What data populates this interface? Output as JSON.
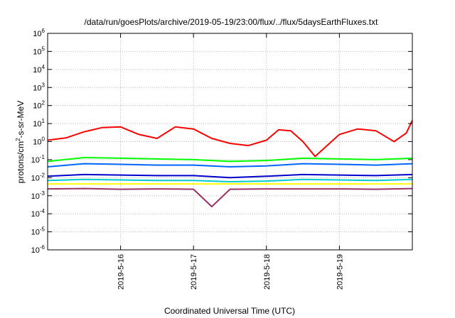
{
  "chart_data": {
    "type": "line",
    "title": "/data/run/goesPlots/archive/2019-05-19/23:00/flux/../flux/5daysEarthFluxes.txt",
    "xlabel": "Coordinated Universal Time (UTC)",
    "ylabel": {
      "base": "protons/cm",
      "sup": "2",
      "tail": "-s-sr-MeV"
    },
    "y_scale": "log",
    "ylim": [
      1e-06,
      1000000.0
    ],
    "y_ticks": [
      {
        "value": 1e-06,
        "base": "10",
        "exp": "-6"
      },
      {
        "value": 1e-05,
        "base": "10",
        "exp": "-5"
      },
      {
        "value": 0.0001,
        "base": "10",
        "exp": "-4"
      },
      {
        "value": 0.001,
        "base": "10",
        "exp": "-3"
      },
      {
        "value": 0.01,
        "base": "10",
        "exp": "-2"
      },
      {
        "value": 0.1,
        "base": "10",
        "exp": "-1"
      },
      {
        "value": 1.0,
        "base": "10",
        "exp": "0"
      },
      {
        "value": 10.0,
        "base": "10",
        "exp": "1"
      },
      {
        "value": 100.0,
        "base": "10",
        "exp": "2"
      },
      {
        "value": 1000.0,
        "base": "10",
        "exp": "3"
      },
      {
        "value": 10000.0,
        "base": "10",
        "exp": "4"
      },
      {
        "value": 100000.0,
        "base": "10",
        "exp": "5"
      },
      {
        "value": 1000000.0,
        "base": "10",
        "exp": "6"
      }
    ],
    "xlim": [
      "2019-05-15T00:00",
      "2019-05-20T00:00"
    ],
    "x_ticks": [
      {
        "value": "2019-05-16T00:00",
        "label": "2019-5-16"
      },
      {
        "value": "2019-05-17T00:00",
        "label": "2019-5-17"
      },
      {
        "value": "2019-05-18T00:00",
        "label": "2019-5-18"
      },
      {
        "value": "2019-05-19T00:00",
        "label": "2019-5-19"
      }
    ],
    "grid": true,
    "legend": "none",
    "series": [
      {
        "color": "#ff0000",
        "x": [
          "2019-05-15T00:00",
          "2019-05-15T06:00",
          "2019-05-15T12:00",
          "2019-05-15T18:00",
          "2019-05-16T00:00",
          "2019-05-16T06:00",
          "2019-05-16T12:00",
          "2019-05-16T18:00",
          "2019-05-17T00:00",
          "2019-05-17T06:00",
          "2019-05-17T12:00",
          "2019-05-17T18:00",
          "2019-05-18T00:00",
          "2019-05-18T04:00",
          "2019-05-18T08:00",
          "2019-05-18T12:00",
          "2019-05-18T16:00",
          "2019-05-19T00:00",
          "2019-05-19T06:00",
          "2019-05-19T12:00",
          "2019-05-19T18:00",
          "2019-05-19T22:00",
          "2019-05-20T00:00"
        ],
        "values": [
          1.2,
          1.6,
          3.5,
          6.0,
          6.5,
          2.5,
          1.5,
          6.5,
          5.0,
          1.5,
          0.8,
          0.6,
          1.2,
          4.5,
          4.0,
          1.0,
          0.15,
          2.5,
          5.0,
          4.0,
          1.0,
          3.0,
          15.0
        ]
      },
      {
        "color": "#00ff00",
        "x": [
          "2019-05-15T00:00",
          "2019-05-15T12:00",
          "2019-05-16T00:00",
          "2019-05-16T12:00",
          "2019-05-17T00:00",
          "2019-05-17T12:00",
          "2019-05-18T00:00",
          "2019-05-18T12:00",
          "2019-05-19T00:00",
          "2019-05-19T12:00",
          "2019-05-20T00:00"
        ],
        "values": [
          0.08,
          0.13,
          0.12,
          0.11,
          0.1,
          0.08,
          0.09,
          0.12,
          0.11,
          0.1,
          0.12
        ]
      },
      {
        "color": "#0066ff",
        "x": [
          "2019-05-15T00:00",
          "2019-05-15T12:00",
          "2019-05-16T00:00",
          "2019-05-16T12:00",
          "2019-05-17T00:00",
          "2019-05-17T12:00",
          "2019-05-18T00:00",
          "2019-05-18T12:00",
          "2019-05-19T00:00",
          "2019-05-19T12:00",
          "2019-05-20T00:00"
        ],
        "values": [
          0.04,
          0.06,
          0.055,
          0.05,
          0.05,
          0.04,
          0.045,
          0.06,
          0.055,
          0.05,
          0.06
        ]
      },
      {
        "color": "#0000cc",
        "x": [
          "2019-05-15T00:00",
          "2019-05-15T12:00",
          "2019-05-16T00:00",
          "2019-05-16T12:00",
          "2019-05-17T00:00",
          "2019-05-17T12:00",
          "2019-05-18T00:00",
          "2019-05-18T12:00",
          "2019-05-19T00:00",
          "2019-05-19T12:00",
          "2019-05-20T00:00"
        ],
        "values": [
          0.012,
          0.015,
          0.014,
          0.013,
          0.013,
          0.01,
          0.012,
          0.015,
          0.014,
          0.013,
          0.015
        ]
      },
      {
        "color": "#00cccc",
        "x": [
          "2019-05-15T00:00",
          "2019-05-15T12:00",
          "2019-05-16T00:00",
          "2019-05-16T12:00",
          "2019-05-17T00:00",
          "2019-05-17T12:00",
          "2019-05-18T00:00",
          "2019-05-18T12:00",
          "2019-05-19T00:00",
          "2019-05-19T12:00",
          "2019-05-20T00:00"
        ],
        "values": [
          0.007,
          0.008,
          0.0075,
          0.007,
          0.007,
          0.006,
          0.0065,
          0.008,
          0.0075,
          0.007,
          0.008
        ]
      },
      {
        "color": "#ffff00",
        "x": [
          "2019-05-15T00:00",
          "2019-05-16T00:00",
          "2019-05-17T00:00",
          "2019-05-18T00:00",
          "2019-05-19T00:00",
          "2019-05-20T00:00"
        ],
        "values": [
          0.0045,
          0.0045,
          0.0045,
          0.0045,
          0.0045,
          0.0045
        ]
      },
      {
        "color": "#993366",
        "x": [
          "2019-05-15T00:00",
          "2019-05-15T12:00",
          "2019-05-16T00:00",
          "2019-05-16T12:00",
          "2019-05-17T00:00",
          "2019-05-17T06:00",
          "2019-05-17T12:00",
          "2019-05-18T00:00",
          "2019-05-18T12:00",
          "2019-05-19T00:00",
          "2019-05-19T12:00",
          "2019-05-20T00:00"
        ],
        "values": [
          0.0024,
          0.0025,
          0.0023,
          0.0024,
          0.0023,
          0.00025,
          0.0023,
          0.0024,
          0.0024,
          0.0024,
          0.0023,
          0.0025
        ]
      }
    ]
  }
}
